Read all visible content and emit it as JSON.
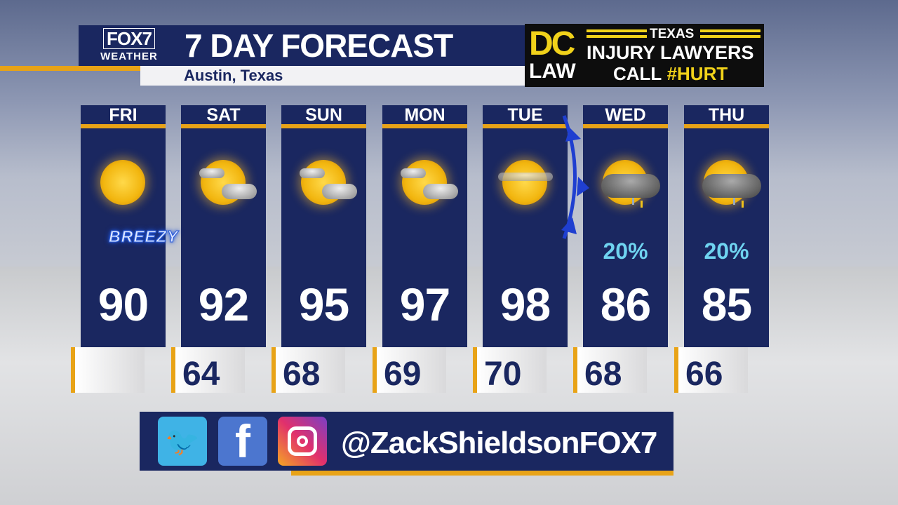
{
  "header": {
    "logo_top": "FOX7",
    "logo_bottom": "WEATHER",
    "title": "7 DAY FORECAST",
    "location": "Austin, Texas"
  },
  "ad": {
    "brand_top": "DC",
    "brand_bottom": "LAW",
    "state": "TEXAS",
    "line1": "INJURY LAWYERS",
    "call": "CALL",
    "hashtag": "#HURT"
  },
  "days": [
    {
      "day": "FRI",
      "high": "90",
      "low": "",
      "icon": "sunny",
      "note": "BREEZY",
      "precip": ""
    },
    {
      "day": "SAT",
      "high": "92",
      "low": "64",
      "icon": "mostly-sunny",
      "precip": ""
    },
    {
      "day": "SUN",
      "high": "95",
      "low": "68",
      "icon": "mostly-sunny",
      "precip": ""
    },
    {
      "day": "MON",
      "high": "97",
      "low": "69",
      "icon": "mostly-sunny",
      "precip": ""
    },
    {
      "day": "TUE",
      "high": "98",
      "low": "70",
      "icon": "hazy-sun",
      "precip": ""
    },
    {
      "day": "WED",
      "high": "86",
      "low": "68",
      "icon": "sun-thunderstorm",
      "precip": "20%"
    },
    {
      "day": "THU",
      "high": "85",
      "low": "66",
      "icon": "sun-thunderstorm",
      "precip": "20%"
    }
  ],
  "colors": {
    "navy": "#1a2760",
    "accent": "#e8a317",
    "precip": "#6fd3f0",
    "front": "#1f3fd0"
  },
  "social": {
    "icons": [
      "twitter-icon",
      "facebook-icon",
      "instagram-icon"
    ],
    "handle": "@ZackShieldsonFOX7"
  }
}
